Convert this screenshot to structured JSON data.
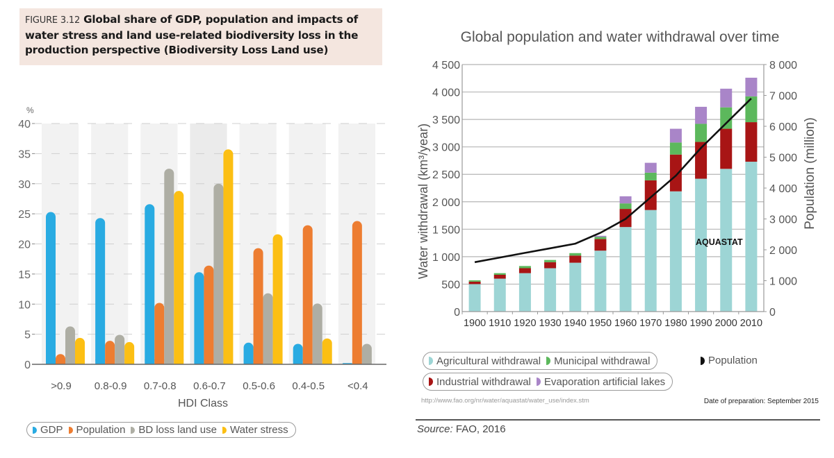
{
  "left_figure": {
    "figure_number": "FIGURE 3.12",
    "title": "Global share of GDP, population and impacts of water stress and land use-related biodiversity loss in the production perspective (Biodiversity Loss Land use)",
    "title_lines": [
      "Global share of GDP, population and impacts of",
      "water stress and land use-related biodiversity loss in the",
      "production perspective (Biodiversity Loss Land use)"
    ],
    "legend": [
      {
        "label": "GDP",
        "color": "#29abe2"
      },
      {
        "label": "Population",
        "color": "#ed7d31"
      },
      {
        "label": "BD loss land use",
        "color": "#aeaea4"
      },
      {
        "label": "Water stress",
        "color": "#fcbf13"
      }
    ]
  },
  "right_figure": {
    "legend_row1": [
      {
        "label": "Agricultural withdrawal",
        "color": "#9dd5d5"
      },
      {
        "label": "Municipal withdrawal",
        "color": "#5cb85c"
      }
    ],
    "legend_free": {
      "label": "Population",
      "color": "#111111"
    },
    "legend_row2": [
      {
        "label": "Industrial withdrawal",
        "color": "#a81515"
      },
      {
        "label": "Evaporation artificial lakes",
        "color": "#a985c8"
      }
    ],
    "url": "http://www.fao.org/nr/water/aquastat/water_use/index.stm",
    "date_of_preparation": "Date of preparation: September 2015",
    "source_label": "Source:",
    "source_value": " FAO, 2016"
  },
  "chart_data": [
    {
      "type": "bar",
      "title": "Global share of GDP, population and impacts of water stress and land use-related biodiversity loss in the production perspective (Biodiversity Loss Land use)",
      "xlabel": "HDI Class",
      "ylabel": "%",
      "ylim": [
        0,
        40
      ],
      "yticks": [
        0,
        5,
        10,
        15,
        20,
        25,
        30,
        35,
        40
      ],
      "grid": true,
      "legend_position": "bottom-left",
      "categories": [
        ">0.9",
        "0.8-0.9",
        "0.7-0.8",
        "0.6-0.7",
        "0.5-0.6",
        "0.4-0.5",
        "<0.4"
      ],
      "category_labels": [
        ">0.9",
        "0.8-0.9",
        "0.7-0.8",
        "0.6-0.7",
        "0.5-0.6",
        "0.4-0.5",
        "<0.4"
      ],
      "series": [
        {
          "name": "GDP",
          "color": "#29abe2",
          "values": [
            25.3,
            24.3,
            26.6,
            15.3,
            3.6,
            3.4,
            0.2
          ]
        },
        {
          "name": "Population",
          "color": "#ed7d31",
          "values": [
            1.7,
            3.9,
            10.2,
            16.4,
            19.3,
            23.1,
            23.8
          ]
        },
        {
          "name": "BD loss land use",
          "color": "#aeaea4",
          "values": [
            6.3,
            4.9,
            32.5,
            30.0,
            11.8,
            10.1,
            3.4
          ]
        },
        {
          "name": "Water stress",
          "color": "#fcbf13",
          "values": [
            4.4,
            3.7,
            28.8,
            35.7,
            21.6,
            4.3,
            null
          ]
        }
      ]
    },
    {
      "type": "bar",
      "stacked": true,
      "title": "Global population and water withdrawal over time",
      "xlabel": "",
      "ylabel": "Water withdrawal (km³/year)",
      "y2label": "Population (million)",
      "ylim": [
        0,
        4500
      ],
      "y2lim": [
        0,
        8000
      ],
      "yticks": [
        "0",
        "500",
        "1 000",
        "1 500",
        "2 000",
        "2 500",
        "3 000",
        "3 500",
        "4 000",
        "4 500"
      ],
      "ytick_values": [
        0,
        500,
        1000,
        1500,
        2000,
        2500,
        3000,
        3500,
        4000,
        4500
      ],
      "y2ticks": [
        "0",
        "1 000",
        "2 000",
        "3 000",
        "4 000",
        "5 000",
        "6 000",
        "7 000",
        "8 000"
      ],
      "y2tick_values": [
        0,
        1000,
        2000,
        3000,
        4000,
        5000,
        6000,
        7000,
        8000
      ],
      "grid": true,
      "legend_position": "bottom",
      "annotation": "AQUASTAT",
      "categories": [
        "1900",
        "1910",
        "1920",
        "1930",
        "1940",
        "1950",
        "1960",
        "1970",
        "1980",
        "1990",
        "2000",
        "2010"
      ],
      "series": [
        {
          "name": "Agricultural withdrawal",
          "color": "#9dd5d5",
          "values": [
            500,
            600,
            700,
            790,
            890,
            1110,
            1540,
            1850,
            2190,
            2420,
            2600,
            2730
          ]
        },
        {
          "name": "Industrial withdrawal",
          "color": "#a81515",
          "values": [
            45,
            70,
            90,
            110,
            130,
            210,
            330,
            540,
            670,
            670,
            730,
            720
          ]
        },
        {
          "name": "Municipal withdrawal",
          "color": "#5cb85c",
          "values": [
            25,
            30,
            40,
            40,
            45,
            40,
            100,
            140,
            220,
            330,
            390,
            470
          ]
        },
        {
          "name": "Evaporation artificial lakes",
          "color": "#a985c8",
          "values": [
            0,
            0,
            0,
            0,
            0,
            20,
            130,
            180,
            250,
            310,
            340,
            340
          ]
        },
        {
          "name": "Population",
          "type": "line",
          "axis": "right",
          "color": "#111111",
          "values": [
            1600,
            1750,
            1900,
            2050,
            2200,
            2550,
            3000,
            3700,
            4400,
            5300,
            6100,
            6900
          ]
        }
      ]
    }
  ]
}
